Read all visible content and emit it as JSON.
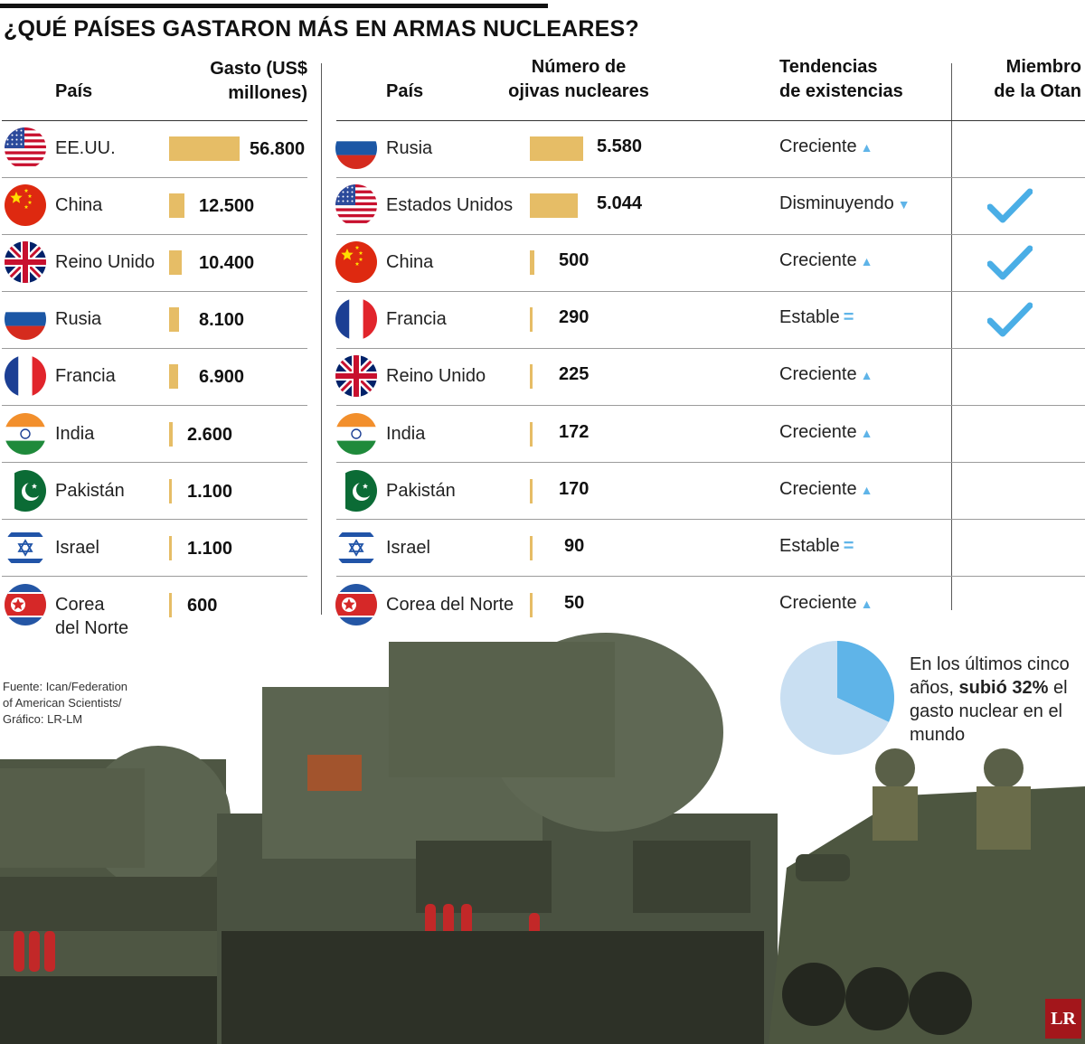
{
  "title": "¿QUÉ PAÍSES GASTARON MÁS EN ARMAS NUCLEARES?",
  "left_headers": {
    "country": "País",
    "spend_line1": "Gasto (US$",
    "spend_line2": "millones)"
  },
  "right_headers": {
    "country": "País",
    "warheads_line1": "Número de",
    "warheads_line2": "ojivas nucleares",
    "trend_line1": "Tendencias",
    "trend_line2": "de existencias",
    "nato_line1": "Miembro",
    "nato_line2": "de la Otan"
  },
  "chart_data": [
    {
      "type": "bar",
      "orientation": "horizontal",
      "title": "¿QUÉ PAÍSES GASTARON MÁS EN ARMAS NUCLEARES?",
      "value_header": "Gasto (US$ millones)",
      "categories": [
        "EE.UU.",
        "China",
        "Reino Unido",
        "Rusia",
        "Francia",
        "India",
        "Pakistán",
        "Israel",
        "Corea del Norte"
      ],
      "values": [
        56800,
        12500,
        10400,
        8100,
        6900,
        2600,
        1100,
        1100,
        600
      ],
      "value_labels": [
        "56.800",
        "12.500",
        "10.400",
        "8.100",
        "6.900",
        "2.600",
        "1.100",
        "1.100",
        "600"
      ],
      "flags": [
        "us",
        "cn",
        "gb",
        "ru",
        "fr",
        "in",
        "pk",
        "il",
        "kp"
      ],
      "bar_color": "#e6bd66"
    },
    {
      "type": "table",
      "columns": [
        "País",
        "Número de ojivas nucleares",
        "Tendencias de existencias",
        "Miembro de la Otan"
      ],
      "rows": [
        {
          "country": "Rusia",
          "flag": "ru",
          "warheads": 5580,
          "label": "5.580",
          "trend": "Creciente",
          "trend_icon": "arrow-up-icon",
          "nato": false
        },
        {
          "country": "Estados Unidos",
          "flag": "us",
          "warheads": 5044,
          "label": "5.044",
          "trend": "Disminuyendo",
          "trend_icon": "arrow-down-icon",
          "nato": true
        },
        {
          "country": "China",
          "flag": "cn",
          "warheads": 500,
          "label": "500",
          "trend": "Creciente",
          "trend_icon": "arrow-up-icon",
          "nato": true
        },
        {
          "country": "Francia",
          "flag": "fr",
          "warheads": 290,
          "label": "290",
          "trend": "Estable",
          "trend_icon": "equals-icon",
          "nato": true
        },
        {
          "country": "Reino Unido",
          "flag": "gb",
          "warheads": 225,
          "label": "225",
          "trend": "Creciente",
          "trend_icon": "arrow-up-icon",
          "nato": false
        },
        {
          "country": "India",
          "flag": "in",
          "warheads": 172,
          "label": "172",
          "trend": "Creciente",
          "trend_icon": "arrow-up-icon",
          "nato": false
        },
        {
          "country": "Pakistán",
          "flag": "pk",
          "warheads": 170,
          "label": "170",
          "trend": "Creciente",
          "trend_icon": "arrow-up-icon",
          "nato": false
        },
        {
          "country": "Israel",
          "flag": "il",
          "warheads": 90,
          "label": "90",
          "trend": "Estable",
          "trend_icon": "equals-icon",
          "nato": false
        },
        {
          "country": "Corea del Norte",
          "flag": "kp",
          "warheads": 50,
          "label": "50",
          "trend": "Creciente",
          "trend_icon": "arrow-up-icon",
          "nato": false
        }
      ],
      "bar_color": "#e6bd66",
      "trend_icon_color": "#5fb4e8",
      "check_color": "#4aaee6"
    },
    {
      "type": "pie",
      "slices": [
        {
          "value": 32,
          "color": "#5fb4e8"
        },
        {
          "value": 68,
          "color": "#c9dff2"
        }
      ]
    }
  ],
  "note": {
    "before": "En los últimos cinco años, ",
    "bold": "subió 32%",
    "after": " el gasto nuclear en el mundo"
  },
  "source": [
    "Fuente: Ican/Federation",
    "of American Scientists/",
    "Gráfico: LR-LM"
  ],
  "logo": "LR",
  "photo": {
    "description_icon": "missile-launcher-photo"
  }
}
